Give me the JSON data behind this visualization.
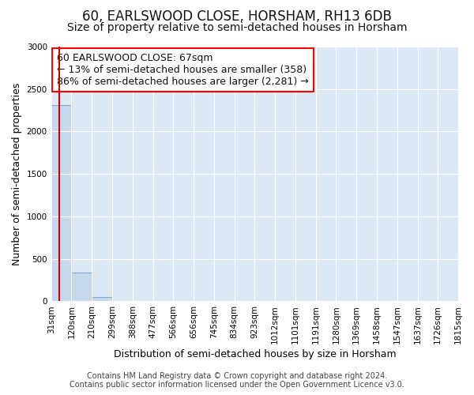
{
  "title": "60, EARLSWOOD CLOSE, HORSHAM, RH13 6DB",
  "subtitle": "Size of property relative to semi-detached houses in Horsham",
  "xlabel": "Distribution of semi-detached houses by size in Horsham",
  "ylabel": "Number of semi-detached properties",
  "footer_line1": "Contains HM Land Registry data © Crown copyright and database right 2024.",
  "footer_line2": "Contains public sector information licensed under the Open Government Licence v3.0.",
  "annotation_line1": "60 EARLSWOOD CLOSE: 67sqm",
  "annotation_line2": "← 13% of semi-detached houses are smaller (358)",
  "annotation_line3": "86% of semi-detached houses are larger (2,281) →",
  "property_size": 67,
  "bin_edges": [
    31,
    120,
    210,
    299,
    388,
    477,
    566,
    656,
    745,
    834,
    923,
    1012,
    1101,
    1191,
    1280,
    1369,
    1458,
    1547,
    1637,
    1726,
    1815
  ],
  "bin_labels": [
    "31sqm",
    "120sqm",
    "210sqm",
    "299sqm",
    "388sqm",
    "477sqm",
    "566sqm",
    "656sqm",
    "745sqm",
    "834sqm",
    "923sqm",
    "1012sqm",
    "1101sqm",
    "1191sqm",
    "1280sqm",
    "1369sqm",
    "1458sqm",
    "1547sqm",
    "1637sqm",
    "1726sqm",
    "1815sqm"
  ],
  "bar_counts": [
    2310,
    340,
    50,
    0,
    0,
    0,
    0,
    0,
    0,
    0,
    0,
    0,
    0,
    0,
    0,
    0,
    0,
    0,
    0,
    0
  ],
  "bar_color": "#c5d8ee",
  "bar_edge_color": "#7aadd4",
  "marker_color": "#cc0000",
  "ylim": [
    0,
    3000
  ],
  "yticks": [
    0,
    500,
    1000,
    1500,
    2000,
    2500,
    3000
  ],
  "bg_color": "#ffffff",
  "plot_bg_color": "#dde8f5",
  "grid_color": "#ffffff",
  "title_fontsize": 12,
  "subtitle_fontsize": 10,
  "axis_label_fontsize": 9,
  "tick_fontsize": 7.5,
  "footer_fontsize": 7,
  "annotation_fontsize": 9
}
